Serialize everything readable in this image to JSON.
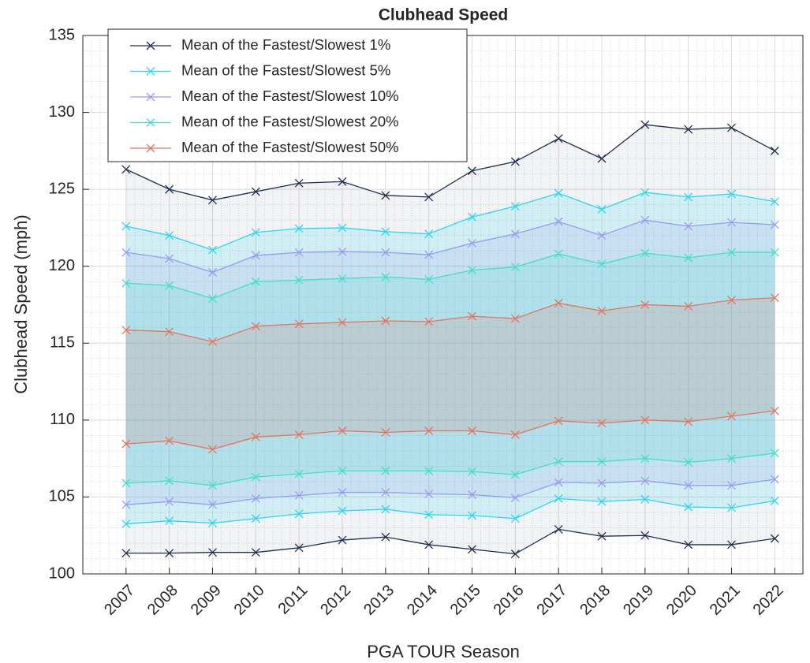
{
  "chart_data": {
    "type": "band-line",
    "title": "Clubhead Speed",
    "xlabel": "PGA TOUR Season",
    "ylabel": "Clubhead Speed (mph)",
    "x": [
      2007,
      2008,
      2009,
      2010,
      2011,
      2012,
      2013,
      2014,
      2015,
      2016,
      2017,
      2018,
      2019,
      2020,
      2021,
      2022
    ],
    "xlim": [
      2006,
      2022.65
    ],
    "xticks": [
      2007,
      2008,
      2009,
      2010,
      2011,
      2012,
      2013,
      2014,
      2015,
      2016,
      2017,
      2018,
      2019,
      2020,
      2021,
      2022
    ],
    "ylim": [
      100,
      135
    ],
    "yticks": [
      100,
      105,
      110,
      115,
      120,
      125,
      130,
      135
    ],
    "grid": true,
    "minor_grid": true,
    "legend": "upper left",
    "series": [
      {
        "name": "Mean of the Fastest/Slowest 1%",
        "color": "#1f2f4f",
        "upper": [
          126.3,
          125.0,
          124.3,
          124.85,
          125.4,
          125.5,
          124.6,
          124.5,
          126.2,
          126.8,
          128.3,
          127.0,
          129.2,
          128.9,
          129.0,
          127.5
        ],
        "lower": [
          101.35,
          101.35,
          101.4,
          101.4,
          101.7,
          102.2,
          102.4,
          101.9,
          101.6,
          101.3,
          102.9,
          102.45,
          102.5,
          101.9,
          101.9,
          102.3
        ]
      },
      {
        "name": "Mean of the Fastest/Slowest 5%",
        "color": "#28d8f0",
        "upper": [
          122.6,
          122.0,
          121.05,
          122.2,
          122.45,
          122.5,
          122.25,
          122.1,
          123.2,
          123.9,
          124.75,
          123.7,
          124.8,
          124.5,
          124.7,
          124.2
        ],
        "lower": [
          103.25,
          103.45,
          103.3,
          103.6,
          103.9,
          104.1,
          104.2,
          103.85,
          103.8,
          103.6,
          104.9,
          104.7,
          104.85,
          104.35,
          104.3,
          104.75
        ]
      },
      {
        "name": "Mean of the Fastest/Slowest 10%",
        "color": "#9a9af0",
        "upper": [
          120.9,
          120.5,
          119.6,
          120.7,
          120.9,
          120.95,
          120.9,
          120.75,
          121.5,
          122.1,
          122.9,
          122.0,
          123.0,
          122.6,
          122.85,
          122.7
        ],
        "lower": [
          104.5,
          104.7,
          104.5,
          104.9,
          105.1,
          105.3,
          105.3,
          105.2,
          105.15,
          104.95,
          105.95,
          105.9,
          106.05,
          105.75,
          105.75,
          106.15
        ]
      },
      {
        "name": "Mean of the Fastest/Slowest 20%",
        "color": "#40e0c8",
        "upper": [
          118.9,
          118.75,
          117.9,
          119.0,
          119.1,
          119.2,
          119.3,
          119.15,
          119.75,
          119.95,
          120.8,
          120.15,
          120.85,
          120.55,
          120.9,
          120.9
        ],
        "lower": [
          105.9,
          106.05,
          105.75,
          106.3,
          106.5,
          106.7,
          106.7,
          106.7,
          106.65,
          106.45,
          107.3,
          107.3,
          107.5,
          107.25,
          107.5,
          107.85
        ]
      },
      {
        "name": "Mean of the Fastest/Slowest 50%",
        "color": "#e8735a",
        "upper": [
          115.85,
          115.75,
          115.1,
          116.1,
          116.25,
          116.35,
          116.45,
          116.4,
          116.75,
          116.6,
          117.6,
          117.1,
          117.5,
          117.4,
          117.8,
          117.95
        ],
        "lower": [
          108.45,
          108.65,
          108.1,
          108.9,
          109.05,
          109.3,
          109.2,
          109.3,
          109.3,
          109.05,
          109.95,
          109.8,
          110.0,
          109.9,
          110.25,
          110.6
        ]
      }
    ]
  }
}
